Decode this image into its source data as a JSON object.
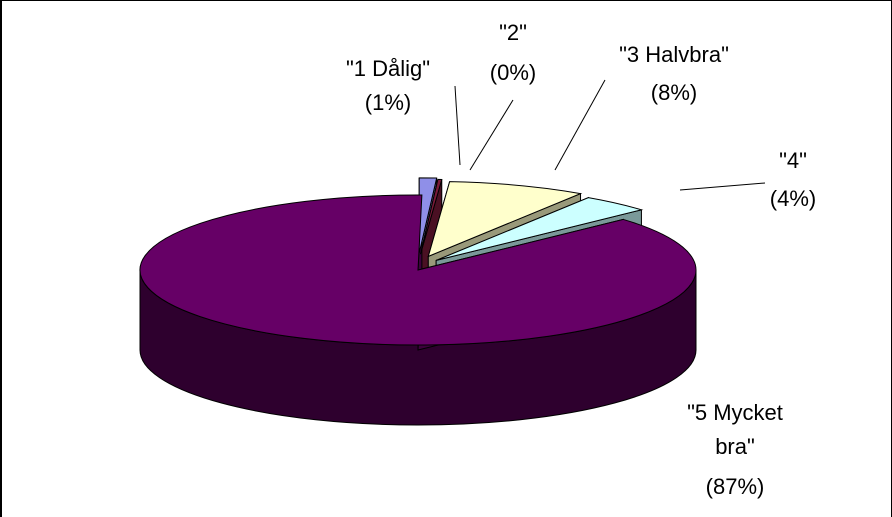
{
  "chart_data": {
    "type": "pie",
    "style": "3d-exploded",
    "legend": "none",
    "slices": [
      {
        "label_lines": [
          "\"1 Dålig\"",
          "(1%)"
        ],
        "value": 1,
        "color": "#8f8fe8"
      },
      {
        "label_lines": [
          "\"2\"",
          "(0%)"
        ],
        "value": 0,
        "color": "#7b1a3a"
      },
      {
        "label_lines": [
          "\"3 Halvbra\"",
          "(8%)"
        ],
        "value": 8,
        "color": "#ffffcc"
      },
      {
        "label_lines": [
          "\"4\"",
          "(4%)"
        ],
        "value": 4,
        "color": "#ccffff"
      },
      {
        "label_lines": [
          "\"5 Mycket",
          "bra\"",
          "(87%)"
        ],
        "value": 87,
        "color": "#660066"
      }
    ]
  }
}
